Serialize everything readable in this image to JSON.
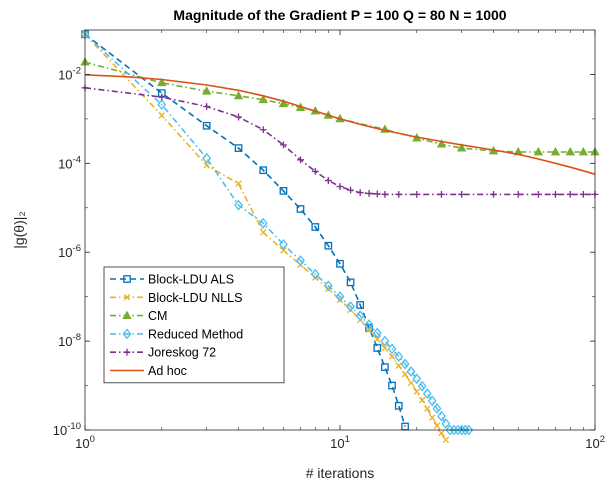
{
  "chart_data": {
    "type": "line",
    "title": "Magnitude of the Gradient P = 100 Q = 80 N = 1000",
    "xlabel": "# iterations",
    "ylabel": "|g(θ)|₂",
    "xscale": "log",
    "yscale": "log",
    "xlim": [
      1,
      100
    ],
    "ylim": [
      1e-10,
      0.1
    ],
    "x_ticks": [
      {
        "value": 1,
        "base": "10",
        "exp": "0"
      },
      {
        "value": 10,
        "base": "10",
        "exp": "1"
      },
      {
        "value": 100,
        "base": "10",
        "exp": "2"
      }
    ],
    "y_ticks": [
      {
        "value": 1e-10,
        "base": "10",
        "exp": "-10"
      },
      {
        "value": 1e-08,
        "base": "10",
        "exp": "-8"
      },
      {
        "value": 1e-06,
        "base": "10",
        "exp": "-6"
      },
      {
        "value": 0.0001,
        "base": "10",
        "exp": "-4"
      },
      {
        "value": 0.01,
        "base": "10",
        "exp": "-2"
      }
    ],
    "grid": false,
    "box": true,
    "legend": "bottom-left",
    "series": [
      {
        "name": "Block-LDU ALS",
        "color": "#0072BD",
        "line": "dash",
        "marker": "square",
        "x": [
          1,
          2,
          3,
          4,
          5,
          6,
          7,
          8,
          9,
          10,
          11,
          12,
          13,
          14,
          15,
          16,
          17,
          18
        ],
        "y": [
          0.08,
          0.0038,
          0.0007,
          0.00022,
          7e-05,
          2.4e-05,
          9.4e-06,
          3.7e-06,
          1.4e-06,
          5.5e-07,
          2.1e-07,
          6.5e-08,
          2e-08,
          7e-09,
          2.6e-09,
          1e-09,
          3.5e-10,
          1.2e-10
        ]
      },
      {
        "name": "Block-LDU NLLS",
        "color": "#EDB120",
        "line": "dashdot",
        "marker": "x",
        "x": [
          1,
          2,
          3,
          4,
          5,
          6,
          7,
          8,
          9,
          10,
          11,
          12,
          13,
          14,
          15,
          16,
          17,
          18,
          19,
          20,
          21,
          22,
          23,
          24,
          25,
          26
        ],
        "y": [
          0.08,
          0.0012,
          9e-05,
          3.5e-05,
          2.8e-06,
          1.1e-06,
          5.2e-07,
          2.7e-07,
          1.5e-07,
          8.5e-08,
          5e-08,
          3e-08,
          1.8e-08,
          1.1e-08,
          7e-09,
          4.5e-09,
          2.8e-09,
          1.8e-09,
          1.15e-09,
          7.3e-10,
          4.7e-10,
          3e-10,
          1.9e-10,
          1.25e-10,
          8.5e-11,
          6e-11
        ]
      },
      {
        "name": "CM",
        "color": "#77AC30",
        "line": "dashdot",
        "marker": "triangle",
        "x": [
          1,
          2,
          3,
          4,
          5,
          6,
          7,
          8,
          9,
          10,
          15,
          20,
          25,
          30,
          40,
          50,
          60,
          70,
          80,
          90,
          100
        ],
        "y": [
          0.019,
          0.0065,
          0.0042,
          0.0033,
          0.0027,
          0.0022,
          0.0018,
          0.0015,
          0.0012,
          0.001,
          0.00058,
          0.00037,
          0.00027,
          0.00022,
          0.00019,
          0.00018,
          0.00018,
          0.00018,
          0.00018,
          0.00018,
          0.00018
        ]
      },
      {
        "name": "Reduced Method",
        "color": "#4DBEEE",
        "line": "dashdot",
        "marker": "diamond",
        "x": [
          1,
          2,
          3,
          4,
          5,
          6,
          7,
          8,
          9,
          10,
          11,
          12,
          13,
          14,
          15,
          16,
          17,
          18,
          19,
          20,
          21,
          22,
          23,
          24,
          25,
          26,
          27,
          28,
          29,
          30,
          31,
          32
        ],
        "y": [
          0.08,
          0.0021,
          0.00013,
          1.15e-05,
          4.5e-06,
          1.5e-06,
          6.5e-07,
          3.2e-07,
          1.75e-07,
          1e-07,
          6e-08,
          3.7e-08,
          2.35e-08,
          1.52e-08,
          1e-08,
          6.7e-09,
          4.5e-09,
          3.05e-09,
          2.08e-09,
          1.42e-09,
          9.7e-10,
          6.6e-10,
          4.5e-10,
          3.05e-10,
          2.05e-10,
          1.4e-10,
          1e-10,
          1e-10,
          1e-10,
          1e-10,
          1e-10,
          1e-10
        ]
      },
      {
        "name": "Joreskog 72",
        "color": "#7E2F8E",
        "line": "dashdot",
        "marker": "plus",
        "x": [
          1,
          2,
          3,
          4,
          5,
          6,
          7,
          8,
          9,
          10,
          11,
          12,
          13,
          14,
          15,
          17,
          20,
          25,
          30,
          40,
          50,
          60,
          70,
          80,
          90,
          100
        ],
        "y": [
          0.005,
          0.0031,
          0.0019,
          0.0011,
          0.00057,
          0.00026,
          0.00012,
          6.6e-05,
          4.1e-05,
          3e-05,
          2.5e-05,
          2.2e-05,
          2.1e-05,
          2.05e-05,
          2e-05,
          2e-05,
          2e-05,
          2e-05,
          2e-05,
          2e-05,
          2e-05,
          2e-05,
          2e-05,
          2e-05,
          2e-05,
          2e-05
        ]
      },
      {
        "name": "Ad hoc",
        "color": "#D95319",
        "line": "solid",
        "marker": "none",
        "x": [
          1,
          1.5,
          2,
          3,
          4,
          5,
          6,
          7,
          8,
          10,
          12,
          15,
          20,
          25,
          30,
          40,
          50,
          60,
          70,
          80,
          90,
          100
        ],
        "y": [
          0.0098,
          0.0088,
          0.0077,
          0.0058,
          0.0044,
          0.0033,
          0.0025,
          0.0019,
          0.0015,
          0.001,
          0.00075,
          0.00055,
          0.00039,
          0.00031,
          0.00026,
          0.0002,
          0.00016,
          0.000125,
          0.0001,
          8.2e-05,
          6.8e-05,
          5.7e-05
        ]
      }
    ]
  }
}
